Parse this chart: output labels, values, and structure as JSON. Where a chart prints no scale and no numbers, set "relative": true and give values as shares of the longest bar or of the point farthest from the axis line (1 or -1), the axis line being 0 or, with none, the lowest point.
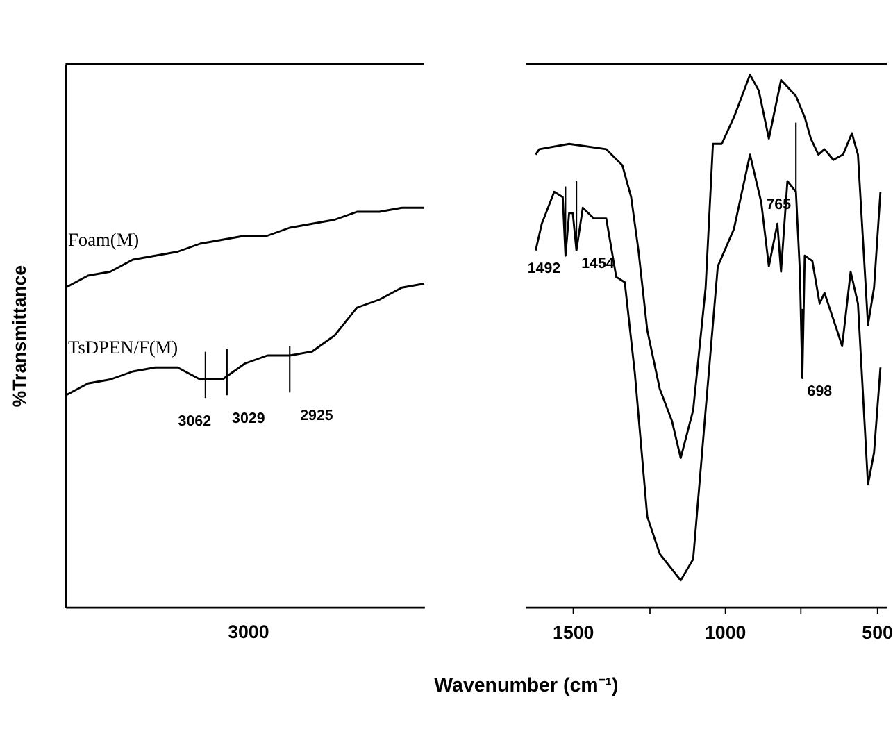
{
  "chart_data": [
    {
      "type": "line",
      "relative": true,
      "ylabel": "%Transmittance",
      "categories": [
        null,
        null,
        null,
        null,
        null,
        null,
        null,
        null,
        null,
        null,
        null,
        null,
        null,
        null,
        null,
        null,
        null
      ],
      "series": [
        {
          "name": "Foam(M)",
          "color": "#000000",
          "values": [
            0.8,
            0.83,
            0.84,
            0.87,
            0.88,
            0.89,
            0.91,
            0.92,
            0.93,
            0.93,
            0.95,
            0.96,
            0.97,
            0.99,
            0.99,
            1.0,
            1.0
          ]
        },
        {
          "name": "TsDPEN/F(M)",
          "color": "#000000",
          "values": [
            0.53,
            0.56,
            0.57,
            0.59,
            0.6,
            0.6,
            0.57,
            0.57,
            0.61,
            0.63,
            0.63,
            0.64,
            0.68,
            0.75,
            0.77,
            0.8,
            0.81
          ]
        }
      ],
      "annotations": [
        "3062",
        "3029",
        "2925",
        "3000"
      ]
    },
    {
      "type": "line",
      "relative": true,
      "xlabel": "Wavenumber (cm⁻¹)",
      "xlim": [
        1655,
        467
      ],
      "xticks": [
        1500,
        {
          "value": 1250,
          "label": null
        },
        1000,
        {
          "value": 750,
          "label": null
        },
        500
      ],
      "series": [
        {
          "color": "#000000",
          "x": [
            1622,
            1610,
            1512,
            1390,
            1337,
            1308,
            1284,
            1255,
            1214,
            1174,
            1145,
            1104,
            1063,
            1039,
            1010,
            970,
            917,
            888,
            855,
            815,
            766,
            737,
            717,
            692,
            672,
            643,
            611,
            582,
            562,
            529,
            509,
            488
          ],
          "values": [
            0.85,
            0.86,
            0.87,
            0.86,
            0.83,
            0.77,
            0.67,
            0.52,
            0.41,
            0.35,
            0.28,
            0.37,
            0.6,
            0.87,
            0.87,
            0.92,
            1.0,
            0.97,
            0.88,
            0.99,
            0.96,
            0.92,
            0.88,
            0.85,
            0.86,
            0.84,
            0.85,
            0.89,
            0.85,
            0.53,
            0.6,
            0.78
          ]
        },
        {
          "color": "#000000",
          "x": [
            1622,
            1602,
            1561,
            1533,
            1524,
            1512,
            1500,
            1488,
            1467,
            1431,
            1390,
            1357,
            1329,
            1296,
            1255,
            1214,
            1145,
            1104,
            1063,
            1023,
            970,
            917,
            880,
            855,
            827,
            815,
            794,
            766,
            753,
            745,
            737,
            712,
            688,
            672,
            631,
            614,
            586,
            562,
            529,
            509,
            488
          ],
          "values": [
            0.67,
            0.72,
            0.78,
            0.77,
            0.66,
            0.74,
            0.74,
            0.67,
            0.75,
            0.73,
            0.73,
            0.62,
            0.61,
            0.44,
            0.17,
            0.1,
            0.05,
            0.09,
            0.37,
            0.64,
            0.71,
            0.85,
            0.76,
            0.64,
            0.72,
            0.63,
            0.8,
            0.78,
            0.63,
            0.43,
            0.66,
            0.65,
            0.57,
            0.59,
            0.52,
            0.49,
            0.63,
            0.57,
            0.23,
            0.29,
            0.45
          ]
        }
      ],
      "annotations": [
        {
          "text": "1492",
          "x": 1524,
          "y": 0.66
        },
        {
          "text": "1454",
          "x": 1488,
          "y": 0.67
        },
        {
          "text": "765",
          "x": 766,
          "y": 0.78
        },
        {
          "text": "698",
          "x": 745,
          "y": 0.43
        }
      ]
    }
  ]
}
